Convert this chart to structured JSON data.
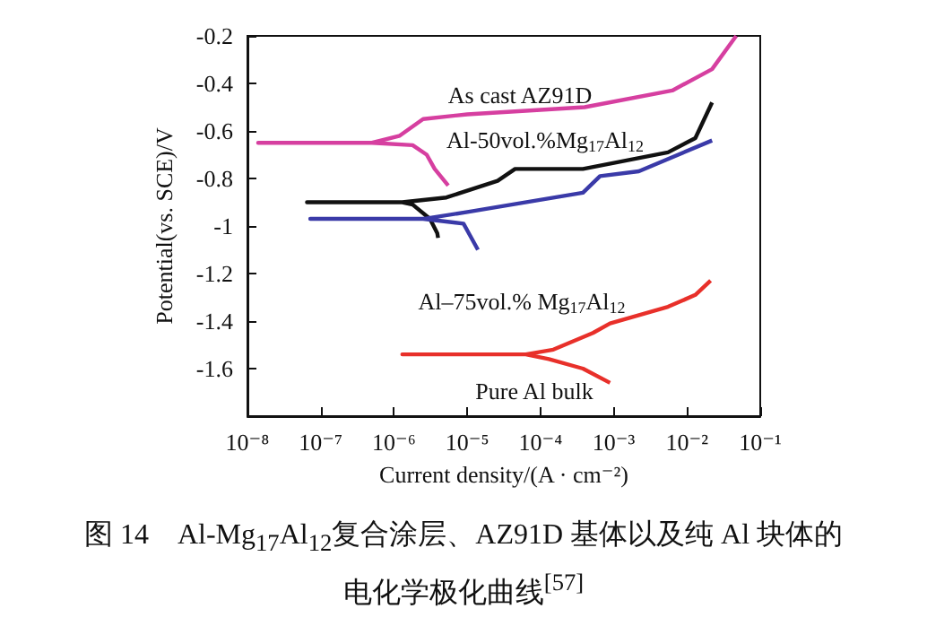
{
  "chart_data": {
    "type": "line",
    "title": "图 14　Al-Mg$_{17}$Al$_{12}$复合涂层、AZ91D 基体以及纯 Al 块体的电化学极化曲线$^{[57]}$",
    "xlabel": "Current density/(A · cm⁻²)",
    "ylabel": "Potential(vs. SCE)/V",
    "log": "x",
    "grid": false,
    "marker": "none",
    "line_style": "solid",
    "xlim": [
      1e-08,
      0.1
    ],
    "xticks": [
      {
        "value": 1e-08,
        "label": "10⁻⁸"
      },
      {
        "value": 1e-07,
        "label": "10⁻⁷"
      },
      {
        "value": 1e-06,
        "label": "10⁻⁶"
      },
      {
        "value": 1e-05,
        "label": "10⁻⁵"
      },
      {
        "value": 0.0001,
        "label": "10⁻⁴"
      },
      {
        "value": 0.001,
        "label": "10⁻³"
      },
      {
        "value": 0.01,
        "label": "10⁻²"
      },
      {
        "value": 0.1,
        "label": "10⁻¹"
      }
    ],
    "ylim": [
      -1.8,
      -0.2
    ],
    "yticks": [
      {
        "value": -1.8,
        "label": null
      },
      -1.6,
      -1.4,
      -1.2,
      -1,
      -0.8,
      -0.6,
      -0.4,
      -0.2
    ],
    "series": [
      {
        "color": "#d63fa0",
        "x": [
          5.5e-06,
          3.6e-06,
          2.8e-06,
          1.8e-06,
          5e-07,
          1.4e-08,
          5e-07,
          1.2e-06,
          2.5e-06,
          1e-05,
          0.0004,
          0.0063,
          0.022,
          0.047
        ],
        "values": [
          -0.83,
          -0.76,
          -0.7,
          -0.66,
          -0.65,
          -0.65,
          -0.65,
          -0.62,
          -0.55,
          -0.53,
          -0.5,
          -0.43,
          -0.34,
          -0.2
        ]
      },
      {
        "color": "#111111",
        "x": [
          4e-06,
          3.9e-06,
          3.1e-06,
          1.8e-06,
          1.3e-06,
          6.5e-08,
          1.3e-06,
          5.2e-06,
          2.6e-05,
          4.5e-05,
          0.00038,
          0.0055,
          0.013,
          0.022
        ],
        "values": [
          -1.05,
          -1.03,
          -0.97,
          -0.91,
          -0.9,
          -0.9,
          -0.9,
          -0.88,
          -0.81,
          -0.76,
          -0.76,
          -0.69,
          -0.63,
          -0.48
        ]
      },
      {
        "color": "#3a3aa8",
        "x": [
          1.4e-05,
          1.05e-05,
          8.9e-06,
          2.5e-06,
          7.2e-08,
          2.5e-06,
          1.05e-05,
          0.00038,
          0.00065,
          0.0022,
          0.022
        ],
        "values": [
          -1.1,
          -1.03,
          -0.99,
          -0.97,
          -0.97,
          -0.97,
          -0.94,
          -0.86,
          -0.79,
          -0.77,
          -0.64
        ]
      },
      {
        "color": "#e8302a",
        "x": [
          0.00089,
          0.00038,
          0.00013,
          6.3e-05,
          1.3e-06,
          6.3e-05,
          0.00015,
          0.00052,
          0.00089,
          0.0055,
          0.013,
          0.021
        ],
        "values": [
          -1.66,
          -1.6,
          -1.56,
          -1.54,
          -1.54,
          -1.54,
          -1.52,
          -1.45,
          -1.41,
          -1.34,
          -1.29,
          -1.23
        ]
      }
    ],
    "annotations": [
      "As cast AZ91D",
      "Al-50vol.%Mg$_{17}$Al$_{12}$",
      "Al–75vol.% Mg$_{17}$Al$_{12}$",
      "Pure Al bulk"
    ]
  }
}
